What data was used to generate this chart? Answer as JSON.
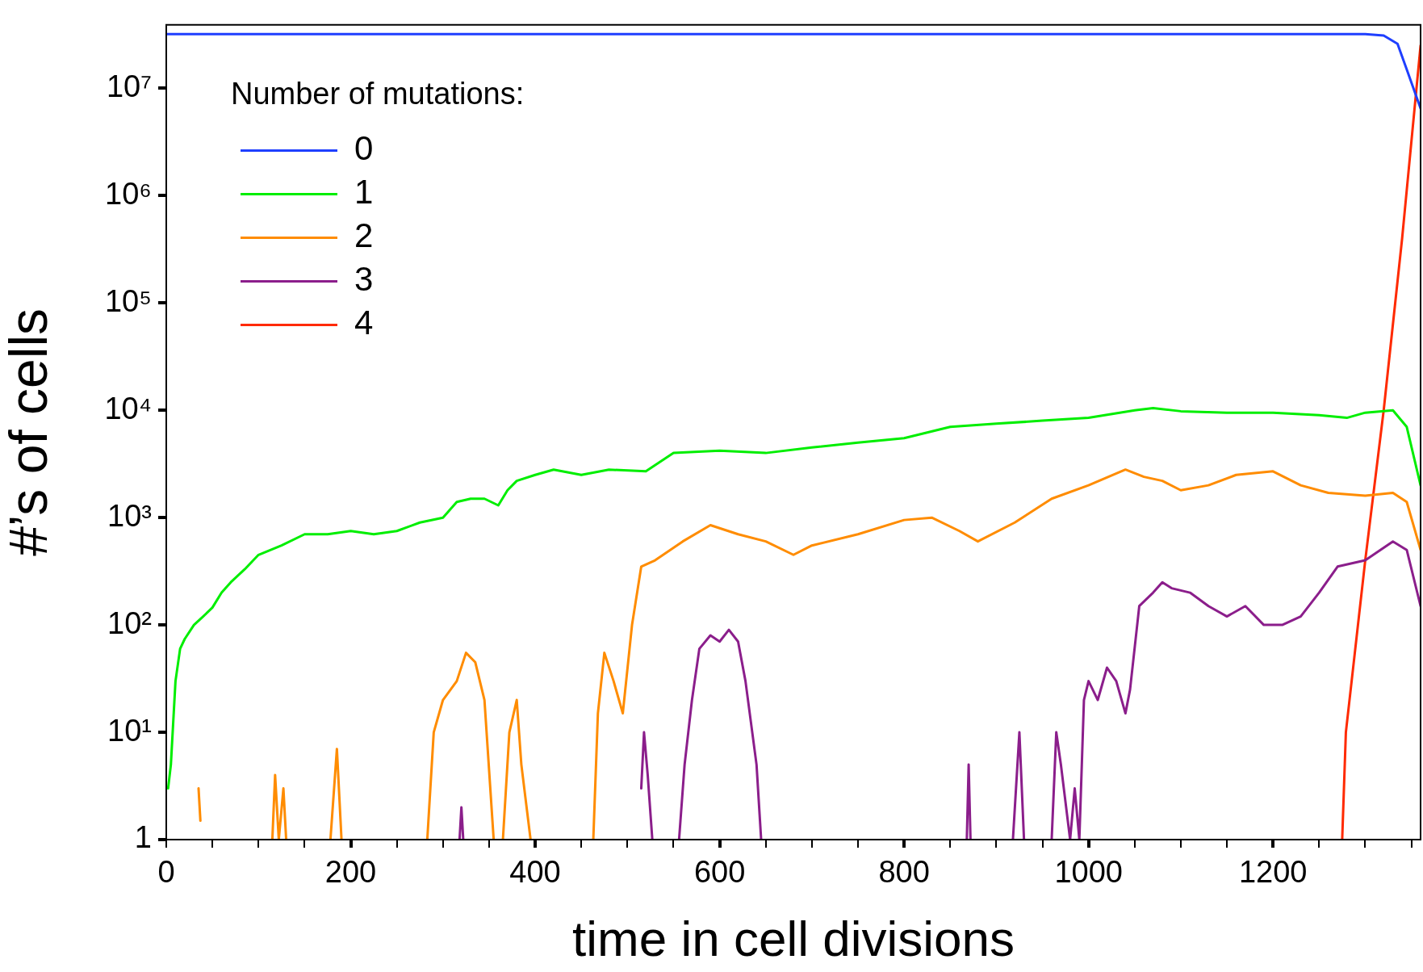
{
  "chart_data": {
    "type": "line",
    "xlabel": "time in cell divisions",
    "ylabel": "#’s of cells",
    "legend_title": "Number of mutations:",
    "legend": "top left",
    "grid": false,
    "log": "y",
    "marker": "none",
    "line_style": "solid",
    "xlim": [
      0,
      1360
    ],
    "ylim": [
      1,
      39000000
    ],
    "xticks": [
      0,
      {
        "value": 50,
        "label": null
      },
      {
        "value": 100,
        "label": null
      },
      {
        "value": 150,
        "label": null
      },
      200,
      {
        "value": 250,
        "label": null
      },
      {
        "value": 300,
        "label": null
      },
      {
        "value": 350,
        "label": null
      },
      400,
      {
        "value": 450,
        "label": null
      },
      {
        "value": 500,
        "label": null
      },
      {
        "value": 550,
        "label": null
      },
      600,
      {
        "value": 650,
        "label": null
      },
      {
        "value": 700,
        "label": null
      },
      {
        "value": 750,
        "label": null
      },
      800,
      {
        "value": 850,
        "label": null
      },
      {
        "value": 900,
        "label": null
      },
      {
        "value": 950,
        "label": null
      },
      1000,
      {
        "value": 1050,
        "label": null
      },
      {
        "value": 1100,
        "label": null
      },
      {
        "value": 1150,
        "label": null
      },
      1200,
      {
        "value": 1250,
        "label": null
      },
      {
        "value": 1300,
        "label": null
      },
      {
        "value": 1350,
        "label": null
      }
    ],
    "yticks": [
      1,
      {
        "value": 10,
        "label": "10¹"
      },
      {
        "value": 100,
        "label": "10²"
      },
      {
        "value": 1000,
        "label": "10³"
      },
      {
        "value": 10000,
        "label": "10⁴"
      },
      {
        "value": 100000,
        "label": "10⁵"
      },
      {
        "value": 1000000,
        "label": "10⁶"
      },
      {
        "value": 10000000,
        "label": "10⁷"
      }
    ],
    "series": [
      {
        "name": "0",
        "color": "#1f3fff",
        "x": [
          0,
          1300,
          1320,
          1335,
          1345,
          1360
        ],
        "values": [
          32000000,
          32000000,
          31000000,
          26000000,
          15000000,
          6500000
        ]
      },
      {
        "name": "1",
        "color": "#00ee00",
        "x": [
          2,
          5,
          10,
          15,
          20,
          30,
          40,
          50,
          60,
          70,
          85,
          100,
          125,
          150,
          175,
          200,
          225,
          250,
          275,
          300,
          315,
          330,
          345,
          360,
          370,
          380,
          400,
          420,
          450,
          480,
          520,
          550,
          600,
          650,
          700,
          750,
          800,
          850,
          900,
          950,
          1000,
          1050,
          1070,
          1100,
          1150,
          1200,
          1250,
          1280,
          1300,
          1330,
          1345,
          1360
        ],
        "values": [
          3,
          5,
          30,
          60,
          74,
          100,
          120,
          145,
          200,
          250,
          330,
          450,
          550,
          700,
          700,
          750,
          700,
          750,
          900,
          1000,
          1400,
          1500,
          1500,
          1300,
          1800,
          2200,
          2500,
          2800,
          2500,
          2800,
          2700,
          4000,
          4200,
          4000,
          4500,
          5000,
          5500,
          7000,
          7500,
          8000,
          8500,
          10000,
          10500,
          9800,
          9500,
          9500,
          9000,
          8500,
          9500,
          10000,
          7000,
          2000
        ]
      },
      {
        "name": "2",
        "color": "#ff8c00",
        "x": [
          35,
          37,
          null,
          115,
          118,
          122,
          127,
          130,
          null,
          178,
          185,
          190,
          null,
          283,
          290,
          300,
          315,
          325,
          335,
          345,
          355,
          null,
          365,
          372,
          380,
          385,
          395,
          null,
          463,
          468,
          475,
          485,
          495,
          505,
          515,
          530,
          560,
          590,
          620,
          650,
          680,
          700,
          750,
          800,
          830,
          860,
          880,
          920,
          960,
          1000,
          1040,
          1060,
          1080,
          1100,
          1130,
          1160,
          1200,
          1230,
          1260,
          1300,
          1330,
          1345,
          1360
        ],
        "values": [
          3,
          1.5,
          null,
          1,
          4,
          1,
          3,
          1,
          null,
          1,
          7,
          1,
          null,
          1,
          10,
          20,
          30,
          55,
          45,
          20,
          1,
          null,
          1,
          10,
          20,
          5,
          1,
          null,
          1,
          15,
          55,
          30,
          15,
          100,
          350,
          400,
          600,
          850,
          700,
          600,
          450,
          550,
          700,
          950,
          1000,
          750,
          600,
          900,
          1500,
          2000,
          2800,
          2400,
          2200,
          1800,
          2000,
          2500,
          2700,
          2000,
          1700,
          1600,
          1700,
          1400,
          500
        ]
      },
      {
        "name": "3",
        "color": "#8b1e8b",
        "x": [
          318,
          320,
          322,
          null,
          515,
          518,
          522,
          527,
          null,
          556,
          562,
          570,
          578,
          590,
          600,
          610,
          620,
          628,
          640,
          645,
          null,
          868,
          870,
          872,
          null,
          918,
          925,
          930,
          null,
          960,
          965,
          970,
          980,
          985,
          990,
          995,
          1000,
          1010,
          1020,
          1030,
          1040,
          1045,
          1055,
          1070,
          1080,
          1090,
          1110,
          1130,
          1150,
          1170,
          1190,
          1210,
          1230,
          1250,
          1270,
          1300,
          1330,
          1345,
          1360
        ],
        "values": [
          1,
          2,
          1,
          null,
          3,
          10,
          4,
          1,
          null,
          1,
          5,
          20,
          60,
          80,
          70,
          90,
          70,
          30,
          5,
          1,
          null,
          1,
          5,
          1,
          null,
          1,
          10,
          1,
          null,
          1,
          10,
          5,
          1,
          3,
          1,
          20,
          30,
          20,
          40,
          30,
          15,
          25,
          150,
          200,
          250,
          220,
          200,
          150,
          120,
          150,
          100,
          100,
          120,
          200,
          350,
          400,
          600,
          500,
          150
        ]
      },
      {
        "name": "4",
        "color": "#ff2a00",
        "x": [
          1275,
          1279,
          1300,
          1320,
          1340,
          1360
        ],
        "values": [
          1,
          10,
          400,
          10000,
          400000,
          25000000
        ]
      }
    ]
  }
}
